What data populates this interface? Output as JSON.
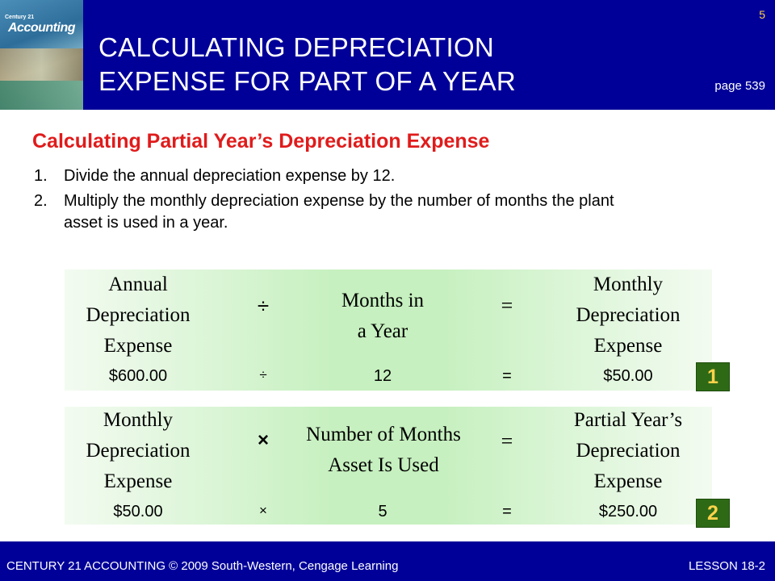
{
  "header": {
    "book_brand_small": "Century 21",
    "book_brand": "Accounting",
    "title_line1": "CALCULATING DEPRECIATION",
    "title_line2": "EXPENSE FOR PART OF A YEAR",
    "slide_number": "5",
    "page_ref": "page 539"
  },
  "subtitle": "Calculating Partial Year’s Depreciation Expense",
  "steps": [
    {
      "num": "1.",
      "text": "Divide the annual depreciation expense by 12."
    },
    {
      "num": "2.",
      "text": "Multiply the monthly depreciation expense by the number of months the plant asset is used in a year."
    }
  ],
  "formula1": {
    "left_label": [
      "Annual",
      "Depreciation",
      "Expense"
    ],
    "operator": "÷",
    "middle_label": [
      "Months in",
      "a Year"
    ],
    "equals": "=",
    "right_label": [
      "Monthly",
      "Depreciation",
      "Expense"
    ],
    "left_value": "$600.00",
    "operator_value": "÷",
    "middle_value": "12",
    "equals_value": "=",
    "right_value": "$50.00",
    "badge": "1"
  },
  "formula2": {
    "left_label": [
      "Monthly",
      "Depreciation",
      "Expense"
    ],
    "operator": "×",
    "middle_label": [
      "Number of Months",
      "Asset Is Used"
    ],
    "equals": "=",
    "right_label": [
      "Partial Year’s",
      "Depreciation",
      "Expense"
    ],
    "left_value": "$50.00",
    "operator_value": "×",
    "middle_value": "5",
    "equals_value": "=",
    "right_value": "$250.00",
    "badge": "2"
  },
  "footer": {
    "left": "CENTURY 21 ACCOUNTING © 2009 South-Western, Cengage Learning",
    "right": "LESSON  18-2"
  },
  "colors": {
    "header_bg": "#000099",
    "subtitle": "#e01b1b",
    "slide_number": "#ffd24a",
    "badge_bg": "#2e6a16",
    "badge_text": "#ffd24a",
    "formula_bg": "#c6f0bf"
  }
}
